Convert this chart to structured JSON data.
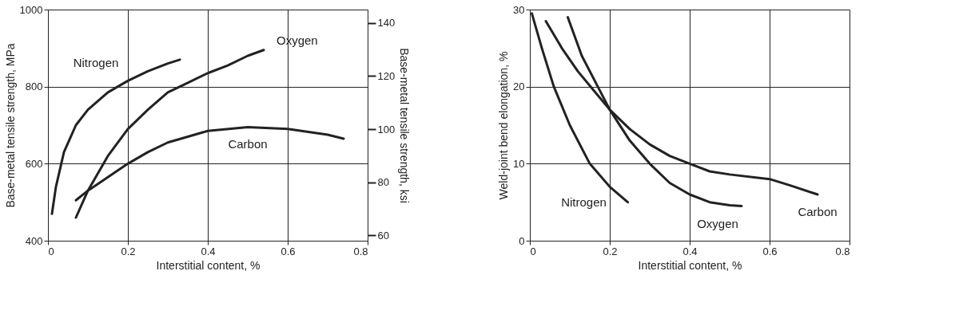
{
  "chart_data": [
    {
      "type": "line",
      "xlabel": "Interstitial content, %",
      "ylabel": "Base-metal tensile strength, MPa",
      "y2label": "Base-metal tensile strength, ksi",
      "xlim": [
        0,
        0.8
      ],
      "xticks": [
        0,
        0.2,
        0.4,
        0.6,
        0.8
      ],
      "ylim": [
        400,
        1000
      ],
      "yticks": [
        400,
        600,
        800,
        1000
      ],
      "y2lim": [
        58.0,
        145.0
      ],
      "y2ticks": [
        60,
        80,
        100,
        120,
        140
      ],
      "grid": true,
      "marker": "none",
      "line_style": "solid",
      "series": [
        {
          "name": "Nitrogen",
          "color": "#222222",
          "x": [
            0.01,
            0.02,
            0.04,
            0.07,
            0.1,
            0.15,
            0.2,
            0.25,
            0.3,
            0.33
          ],
          "values": [
            470,
            540,
            630,
            700,
            740,
            785,
            815,
            840,
            860,
            870
          ]
        },
        {
          "name": "Oxygen",
          "color": "#222222",
          "x": [
            0.07,
            0.1,
            0.15,
            0.2,
            0.25,
            0.3,
            0.35,
            0.4,
            0.45,
            0.5,
            0.54
          ],
          "values": [
            460,
            530,
            620,
            690,
            740,
            785,
            810,
            835,
            855,
            880,
            895
          ]
        },
        {
          "name": "Carbon",
          "color": "#222222",
          "x": [
            0.07,
            0.1,
            0.15,
            0.2,
            0.25,
            0.3,
            0.35,
            0.4,
            0.5,
            0.6,
            0.7,
            0.74
          ],
          "values": [
            505,
            530,
            565,
            600,
            630,
            655,
            670,
            685,
            695,
            690,
            675,
            665
          ]
        }
      ]
    },
    {
      "type": "line",
      "xlabel": "Interstitial content, %",
      "ylabel": "Weld-joint bend elongation, %",
      "xlim": [
        0,
        0.8
      ],
      "xticks": [
        0,
        0.2,
        0.4,
        0.6,
        0.8
      ],
      "ylim": [
        0,
        30
      ],
      "yticks": [
        0,
        10,
        20,
        30
      ],
      "grid": true,
      "marker": "none",
      "line_style": "solid",
      "series": [
        {
          "name": "Nitrogen",
          "color": "#222222",
          "x": [
            0.005,
            0.03,
            0.06,
            0.1,
            0.15,
            0.2,
            0.245
          ],
          "values": [
            29.5,
            25,
            20,
            15,
            10,
            7,
            5
          ]
        },
        {
          "name": "Oxygen",
          "color": "#222222",
          "x": [
            0.095,
            0.13,
            0.17,
            0.2,
            0.25,
            0.3,
            0.35,
            0.4,
            0.45,
            0.5,
            0.53
          ],
          "values": [
            29,
            24,
            20,
            17,
            13,
            10,
            7.5,
            6,
            5,
            4.6,
            4.5
          ]
        },
        {
          "name": "Carbon",
          "color": "#222222",
          "x": [
            0.04,
            0.08,
            0.12,
            0.16,
            0.2,
            0.25,
            0.3,
            0.35,
            0.4,
            0.45,
            0.5,
            0.6,
            0.65,
            0.72
          ],
          "values": [
            28.5,
            25,
            22,
            19.5,
            17,
            14.5,
            12.5,
            11,
            10,
            9,
            8.6,
            8,
            7.2,
            6
          ]
        }
      ]
    }
  ]
}
